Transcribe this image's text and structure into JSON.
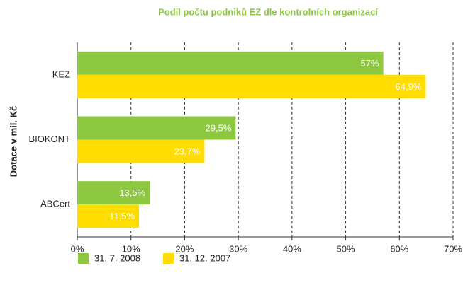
{
  "chart_data": {
    "type": "hbar",
    "title": "Podíl počtu podniků EZ dle kontrolních organizací",
    "y_label": "Dotace v mil. Kč",
    "categories": [
      "KEZ",
      "BIOKONT",
      "ABCert"
    ],
    "series": [
      {
        "name": "31. 7. 2008",
        "color": "#8dc63f",
        "values": [
          57,
          29.5,
          13.5
        ],
        "value_labels": [
          "57%",
          "29,5%",
          "13,5%"
        ]
      },
      {
        "name": "31. 12. 2007",
        "color": "#ffdd00",
        "values": [
          64.9,
          23.7,
          11.5
        ],
        "value_labels": [
          "64,9%",
          "23,7%",
          "11,5%"
        ]
      }
    ],
    "xlim": [
      0,
      70
    ],
    "xticks": [
      {
        "value": 0,
        "label": "0%"
      },
      {
        "value": 10,
        "label": "10%"
      },
      {
        "value": 20,
        "label": "20%"
      },
      {
        "value": 30,
        "label": "30%"
      },
      {
        "value": 40,
        "label": "40%"
      },
      {
        "value": 50,
        "label": "50%"
      },
      {
        "value": 60,
        "label": "60%"
      },
      {
        "value": 70,
        "label": "70%"
      }
    ],
    "grid": true,
    "legend": "bottom"
  }
}
